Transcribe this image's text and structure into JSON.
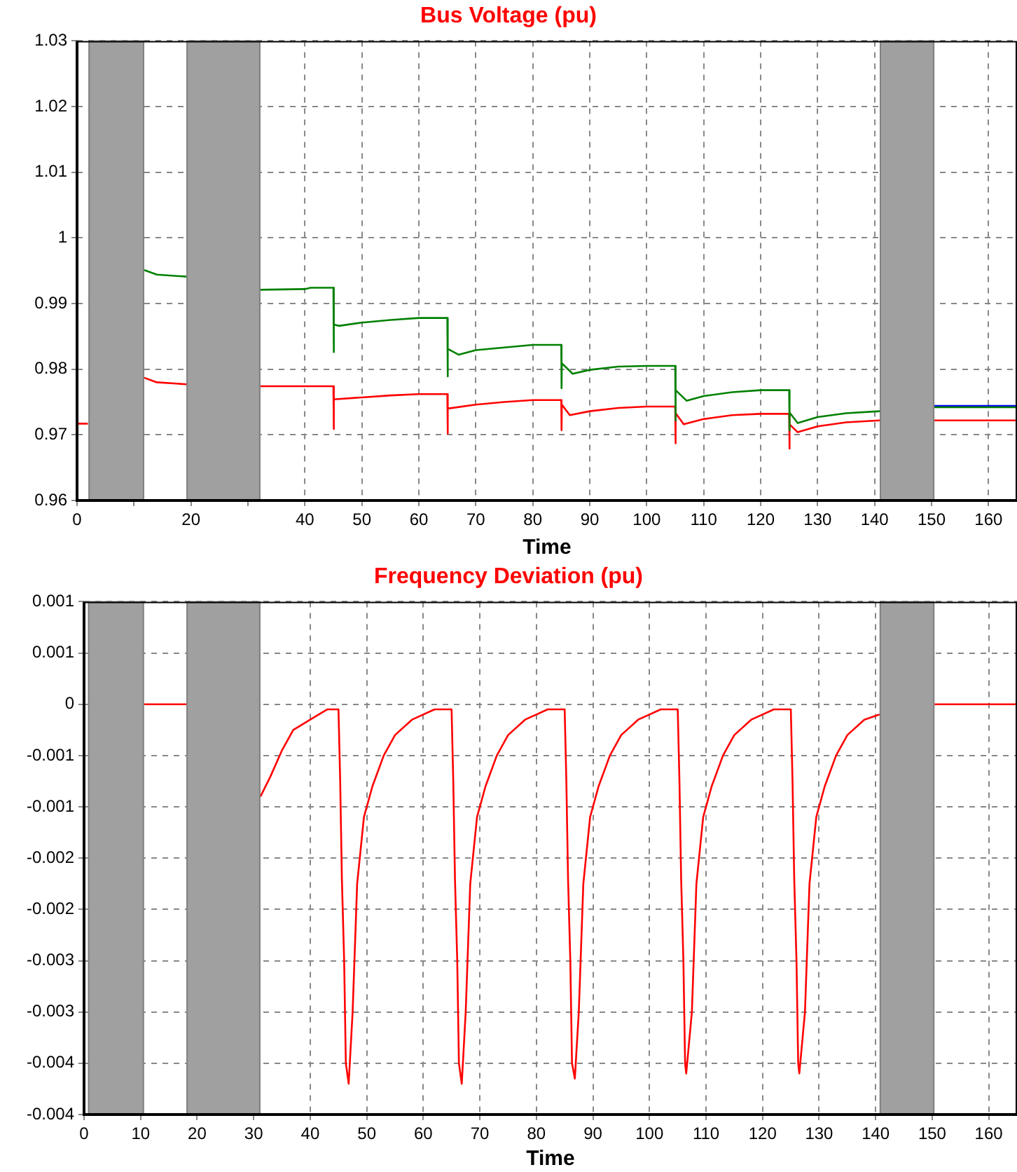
{
  "chart_data": [
    {
      "type": "line",
      "title": "Bus Voltage (pu)",
      "xlabel": "Time",
      "xlim": [
        0,
        165
      ],
      "xticks": [
        0,
        {
          "value": 10,
          "label": null
        },
        20,
        {
          "value": 30,
          "label": null
        },
        40,
        50,
        60,
        70,
        80,
        90,
        100,
        110,
        120,
        130,
        140,
        150,
        160
      ],
      "ylim": [
        0.96,
        1.03
      ],
      "yticks": [
        0.96,
        0.97,
        0.98,
        0.99,
        1,
        1.01,
        1.02,
        1.03
      ],
      "grid": true,
      "bands": [
        {
          "axis": "x",
          "from": 2,
          "to": 11.8,
          "color": "#a0a0a0"
        },
        {
          "axis": "x",
          "from": 19.2,
          "to": 32.2,
          "color": "#a0a0a0"
        },
        {
          "axis": "x",
          "from": 140.9,
          "to": 150.5,
          "color": "#a0a0a0"
        }
      ],
      "series": [
        {
          "color": "#008000",
          "x": [
            11.8,
            14,
            19.2,
            19.3,
            32.2,
            40,
            41,
            45,
            45.05,
            45.1,
            46,
            50,
            55,
            60,
            65,
            65.05,
            65.1,
            67,
            70,
            75,
            80,
            85,
            85.05,
            85.1,
            87,
            90,
            95,
            100,
            105,
            105.05,
            105.1,
            107,
            110,
            115,
            120,
            125,
            125.05,
            125.1,
            126.5,
            130,
            135,
            140.9,
            141,
            150.5,
            165
          ],
          "values": [
            0.9951,
            0.9944,
            0.9941,
            null,
            0.9921,
            0.9922,
            0.9924,
            0.9924,
            0.9826,
            0.9868,
            0.9866,
            0.9871,
            0.9875,
            0.9878,
            0.9878,
            0.9789,
            0.9831,
            0.9822,
            0.9829,
            0.9833,
            0.9837,
            0.9837,
            0.9771,
            0.9809,
            0.9793,
            0.9799,
            0.9804,
            0.9805,
            0.9805,
            0.9722,
            0.9768,
            0.9752,
            0.9759,
            0.9765,
            0.9768,
            0.9768,
            0.9707,
            0.9734,
            0.9718,
            0.9727,
            0.9733,
            0.9736,
            null,
            0.9742,
            0.9742
          ]
        },
        {
          "color": "#ff0000",
          "x": [
            0,
            1.9,
            2,
            11.8,
            14,
            19.2,
            19.3,
            32.2,
            45,
            45.05,
            45.1,
            50,
            55,
            60,
            65,
            65.05,
            65.1,
            70,
            75,
            80,
            85,
            85.05,
            85.1,
            86.5,
            90,
            95,
            100,
            105,
            105.05,
            105.1,
            106.5,
            110,
            115,
            120,
            125,
            125.05,
            125.1,
            126.5,
            130,
            135,
            140.9,
            141,
            150.5,
            165
          ],
          "values": [
            0.9717,
            0.9717,
            null,
            0.9787,
            0.978,
            0.9777,
            null,
            0.9774,
            0.9774,
            0.9709,
            0.9754,
            0.9757,
            0.976,
            0.9762,
            0.9762,
            0.9702,
            0.974,
            0.9746,
            0.975,
            0.9753,
            0.9753,
            0.9707,
            0.9746,
            0.973,
            0.9736,
            0.9741,
            0.9743,
            0.9743,
            0.9687,
            0.9733,
            0.9716,
            0.9724,
            0.973,
            0.9732,
            0.9732,
            0.9679,
            0.9716,
            0.9704,
            0.9713,
            0.9719,
            0.9722,
            null,
            0.9722,
            0.9722
          ]
        },
        {
          "color": "#0000ff",
          "x": [
            150.5,
            165
          ],
          "values": [
            0.9744,
            0.9744
          ]
        }
      ]
    },
    {
      "type": "line",
      "title": "Frequency Deviation (pu)",
      "xlabel": "Time",
      "xlim": [
        0,
        165
      ],
      "xticks": [
        0,
        10,
        20,
        30,
        40,
        50,
        60,
        70,
        80,
        90,
        100,
        110,
        120,
        130,
        140,
        150,
        160
      ],
      "ylim": [
        -0.004,
        0.001
      ],
      "yticks": [
        {
          "value": -0.004,
          "label": "-0.004"
        },
        {
          "value": -0.0035,
          "label": "-0.004"
        },
        {
          "value": -0.003,
          "label": "-0.003"
        },
        {
          "value": -0.0025,
          "label": "-0.003"
        },
        {
          "value": -0.002,
          "label": "-0.002"
        },
        {
          "value": -0.0015,
          "label": "-0.002"
        },
        {
          "value": -0.001,
          "label": "-0.001"
        },
        {
          "value": -0.0005,
          "label": "-0.001"
        },
        {
          "value": 0,
          "label": "0"
        },
        {
          "value": 0.0005,
          "label": "0.001"
        },
        {
          "value": 0.001,
          "label": "0.001"
        }
      ],
      "grid": true,
      "bands": [
        {
          "axis": "x",
          "from": 0.7,
          "to": 10.6,
          "color": "#a0a0a0"
        },
        {
          "axis": "x",
          "from": 18.1,
          "to": 31.2,
          "color": "#a0a0a0"
        },
        {
          "axis": "x",
          "from": 140.7,
          "to": 150.4,
          "color": "#a0a0a0"
        }
      ],
      "series": [
        {
          "color": "#ff0000",
          "x": [
            10.6,
            18.1,
            18.2,
            31.2,
            33,
            35,
            37,
            40,
            43,
            45,
            45.3,
            45.6,
            46,
            46.3,
            46.8,
            47.5,
            48.3,
            49.5,
            51,
            53,
            55,
            58,
            62,
            65,
            65.3,
            65.6,
            66,
            66.3,
            66.8,
            67.5,
            68.3,
            69.5,
            71,
            73,
            75,
            78,
            82,
            85,
            85.3,
            85.6,
            86,
            86.3,
            86.8,
            87.5,
            88.3,
            89.5,
            91,
            93,
            95,
            98,
            102,
            105,
            105.3,
            105.6,
            106,
            106.3,
            106.5,
            107.5,
            108.3,
            109.5,
            111,
            113,
            115,
            118,
            122,
            125,
            125.3,
            125.6,
            126,
            126.3,
            126.5,
            127.5,
            128.3,
            129.5,
            131,
            133,
            135,
            138,
            140.7,
            140.8,
            150.4,
            155,
            155.5,
            165
          ],
          "values": [
            0,
            0,
            null,
            -0.0009,
            -0.0007,
            -0.00045,
            -0.00025,
            -0.00015,
            -5e-05,
            -5e-05,
            -0.00075,
            -0.0017,
            -0.0025,
            -0.0035,
            -0.0037,
            -0.003,
            -0.00175,
            -0.0011,
            -0.0008,
            -0.0005,
            -0.0003,
            -0.00015,
            -5e-05,
            -5e-05,
            -0.00075,
            -0.0017,
            -0.0025,
            -0.0035,
            -0.0037,
            -0.003,
            -0.00175,
            -0.0011,
            -0.0008,
            -0.0005,
            -0.0003,
            -0.00015,
            -5e-05,
            -5e-05,
            -0.00075,
            -0.0017,
            -0.0025,
            -0.0035,
            -0.00365,
            -0.003,
            -0.00175,
            -0.0011,
            -0.0008,
            -0.0005,
            -0.0003,
            -0.00015,
            -5e-05,
            -5e-05,
            -0.00075,
            -0.0017,
            -0.0025,
            -0.0035,
            -0.0036,
            -0.003,
            -0.00175,
            -0.0011,
            -0.0008,
            -0.0005,
            -0.0003,
            -0.00015,
            -5e-05,
            -5e-05,
            -0.00075,
            -0.0017,
            -0.0025,
            -0.0035,
            -0.0036,
            -0.003,
            -0.00175,
            -0.0011,
            -0.0008,
            -0.0005,
            -0.0003,
            -0.00015,
            -0.0001,
            null,
            0,
            0,
            0,
            0
          ]
        }
      ]
    }
  ]
}
